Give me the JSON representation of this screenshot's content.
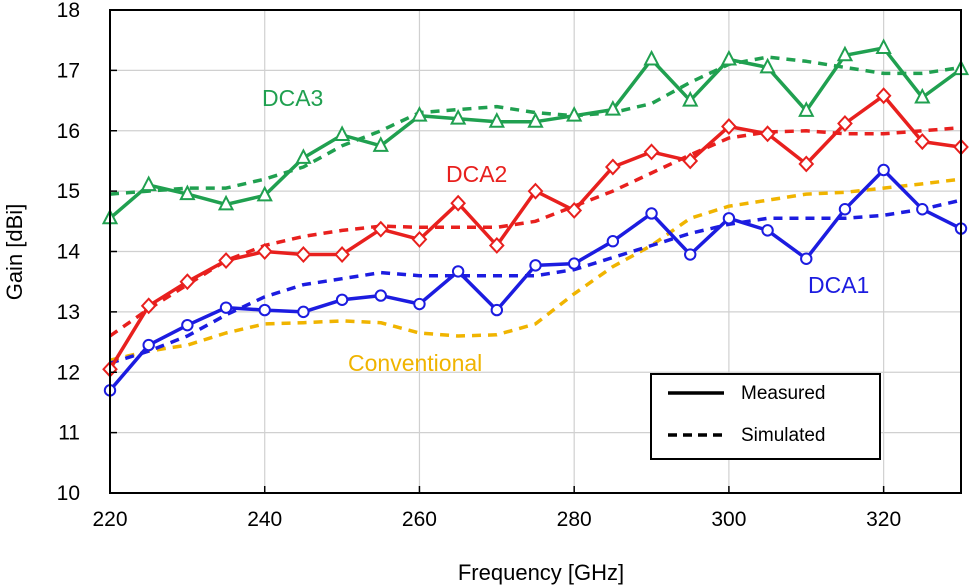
{
  "chart_data": {
    "type": "line",
    "xlabel": "Frequency [GHz]",
    "ylabel": "Gain [dBi]",
    "xlim": [
      220,
      330
    ],
    "ylim": [
      10,
      18
    ],
    "xticks": [
      220,
      240,
      260,
      280,
      300,
      320
    ],
    "yticks": [
      10,
      11,
      12,
      13,
      14,
      15,
      16,
      17,
      18
    ],
    "grid": true,
    "legend": {
      "placement": "bottom-right",
      "entries": [
        {
          "label": "Measured",
          "style": "solid"
        },
        {
          "label": "Simulated",
          "style": "dashed"
        }
      ]
    },
    "annotations": [
      {
        "text": "DCA3",
        "color": "#20a050"
      },
      {
        "text": "DCA2",
        "color": "#e8201e"
      },
      {
        "text": "DCA1",
        "color": "#1c1ce0"
      },
      {
        "text": "Conventional",
        "color": "#f0b400"
      }
    ],
    "series": [
      {
        "name": "DCA3 Measured",
        "color": "#20a050",
        "style": "solid",
        "marker": "triangle",
        "x": [
          220,
          225,
          230,
          235,
          240,
          245,
          250,
          255,
          260,
          265,
          270,
          275,
          280,
          285,
          290,
          295,
          300,
          305,
          310,
          315,
          320,
          325,
          330
        ],
        "values": [
          14.55,
          15.1,
          14.95,
          14.78,
          14.93,
          15.55,
          15.93,
          15.75,
          16.25,
          16.2,
          16.15,
          16.15,
          16.25,
          16.35,
          17.18,
          16.5,
          17.18,
          17.05,
          16.33,
          17.25,
          17.37,
          16.55,
          17.02
        ]
      },
      {
        "name": "DCA3 Simulated",
        "color": "#20a050",
        "style": "dashed",
        "x": [
          220,
          225,
          230,
          235,
          240,
          245,
          250,
          255,
          260,
          265,
          270,
          275,
          280,
          285,
          290,
          295,
          300,
          305,
          310,
          315,
          320,
          325,
          330
        ],
        "values": [
          14.95,
          15.0,
          15.05,
          15.05,
          15.2,
          15.4,
          15.75,
          16.0,
          16.3,
          16.35,
          16.4,
          16.3,
          16.25,
          16.3,
          16.45,
          16.8,
          17.1,
          17.22,
          17.15,
          17.05,
          16.95,
          16.95,
          17.05
        ]
      },
      {
        "name": "DCA2 Measured",
        "color": "#e8201e",
        "style": "solid",
        "marker": "diamond",
        "x": [
          220,
          225,
          230,
          235,
          240,
          245,
          250,
          255,
          260,
          265,
          270,
          275,
          280,
          285,
          290,
          295,
          300,
          305,
          310,
          315,
          320,
          325,
          330
        ],
        "values": [
          12.05,
          13.1,
          13.5,
          13.85,
          14.0,
          13.95,
          13.95,
          14.37,
          14.2,
          14.8,
          14.1,
          15.0,
          14.68,
          15.4,
          15.65,
          15.5,
          16.07,
          15.95,
          15.45,
          16.12,
          16.58,
          15.82,
          15.73
        ]
      },
      {
        "name": "DCA2 Simulated",
        "color": "#e8201e",
        "style": "dashed",
        "x": [
          220,
          225,
          230,
          235,
          240,
          245,
          250,
          255,
          260,
          265,
          270,
          275,
          280,
          285,
          290,
          295,
          300,
          305,
          310,
          315,
          320,
          325,
          330
        ],
        "values": [
          12.6,
          13.05,
          13.45,
          13.85,
          14.1,
          14.25,
          14.35,
          14.42,
          14.4,
          14.4,
          14.4,
          14.5,
          14.75,
          15.0,
          15.3,
          15.6,
          15.88,
          15.98,
          16.0,
          15.95,
          15.95,
          16.0,
          16.05
        ]
      },
      {
        "name": "DCA1 Measured",
        "color": "#1c1ce0",
        "style": "solid",
        "marker": "circle",
        "x": [
          220,
          225,
          230,
          235,
          240,
          245,
          250,
          255,
          260,
          265,
          270,
          275,
          280,
          285,
          290,
          295,
          300,
          305,
          310,
          315,
          320,
          325,
          330
        ],
        "values": [
          11.7,
          12.45,
          12.78,
          13.07,
          13.03,
          13.0,
          13.2,
          13.27,
          13.13,
          13.67,
          13.03,
          13.77,
          13.8,
          14.17,
          14.63,
          13.95,
          14.55,
          14.35,
          13.88,
          14.7,
          15.35,
          14.7,
          14.38
        ]
      },
      {
        "name": "DCA1 Simulated",
        "color": "#1c1ce0",
        "style": "dashed",
        "x": [
          220,
          225,
          230,
          235,
          240,
          245,
          250,
          255,
          260,
          265,
          270,
          275,
          280,
          285,
          290,
          295,
          300,
          305,
          310,
          315,
          320,
          325,
          330
        ],
        "values": [
          12.15,
          12.35,
          12.6,
          12.95,
          13.25,
          13.45,
          13.55,
          13.65,
          13.6,
          13.6,
          13.6,
          13.6,
          13.7,
          13.9,
          14.1,
          14.3,
          14.45,
          14.55,
          14.55,
          14.55,
          14.6,
          14.7,
          14.85
        ]
      },
      {
        "name": "Conventional Simulated",
        "color": "#f0b400",
        "style": "dashed",
        "x": [
          220,
          225,
          230,
          235,
          240,
          245,
          250,
          255,
          260,
          265,
          270,
          275,
          280,
          285,
          290,
          295,
          300,
          305,
          310,
          315,
          320,
          325,
          330
        ],
        "values": [
          12.2,
          12.35,
          12.45,
          12.65,
          12.8,
          12.82,
          12.85,
          12.82,
          12.65,
          12.6,
          12.62,
          12.8,
          13.3,
          13.75,
          14.1,
          14.55,
          14.75,
          14.85,
          14.95,
          14.98,
          15.05,
          15.12,
          15.2
        ]
      }
    ]
  }
}
